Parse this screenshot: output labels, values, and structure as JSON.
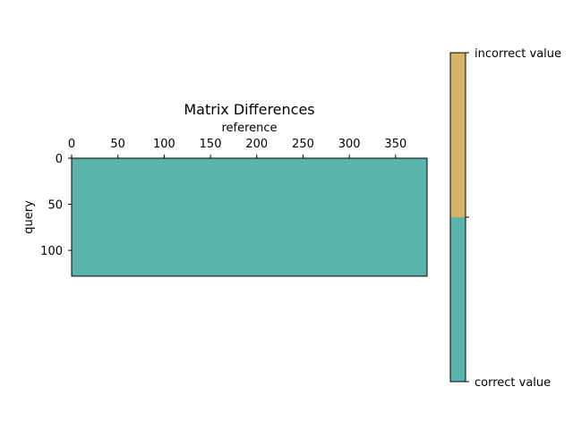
{
  "chart_data": {
    "type": "heatmap",
    "title": "Matrix Differences",
    "xlabel": "reference",
    "ylabel": "query",
    "x_ticks": [
      0,
      50,
      100,
      150,
      200,
      250,
      300,
      350
    ],
    "y_ticks": [
      0,
      50,
      100
    ],
    "xlim": [
      0,
      384
    ],
    "ylim": [
      0,
      128
    ],
    "x_axis_position": "top",
    "matrix_summary": "all cells correct value",
    "cell_value": 0,
    "colorbar": {
      "categories": [
        "correct value",
        "incorrect value"
      ],
      "colors": [
        "#5ab4ac",
        "#d8b365"
      ],
      "range": [
        0,
        1
      ],
      "boundary": 0.5
    },
    "grid": false
  }
}
